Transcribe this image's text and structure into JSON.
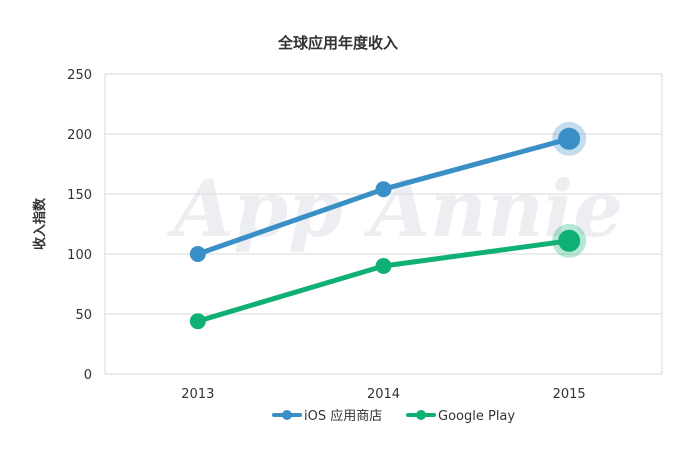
{
  "chart_data": {
    "type": "line",
    "title": "全球应用年度收入",
    "ylabel": "收入指数",
    "xlabel": "",
    "x": [
      "2013",
      "2014",
      "2015"
    ],
    "ylim": [
      0,
      250
    ],
    "yticks": [
      0,
      50,
      100,
      150,
      200,
      250
    ],
    "grid": true,
    "legend_position": "bottom",
    "series": [
      {
        "name": "iOS 应用商店",
        "values": [
          100,
          154,
          196
        ],
        "color": "#3a8fc7"
      },
      {
        "name": "Google Play",
        "values": [
          44,
          90,
          111
        ],
        "color": "#0fb074"
      }
    ],
    "watermark": "App Annie"
  }
}
